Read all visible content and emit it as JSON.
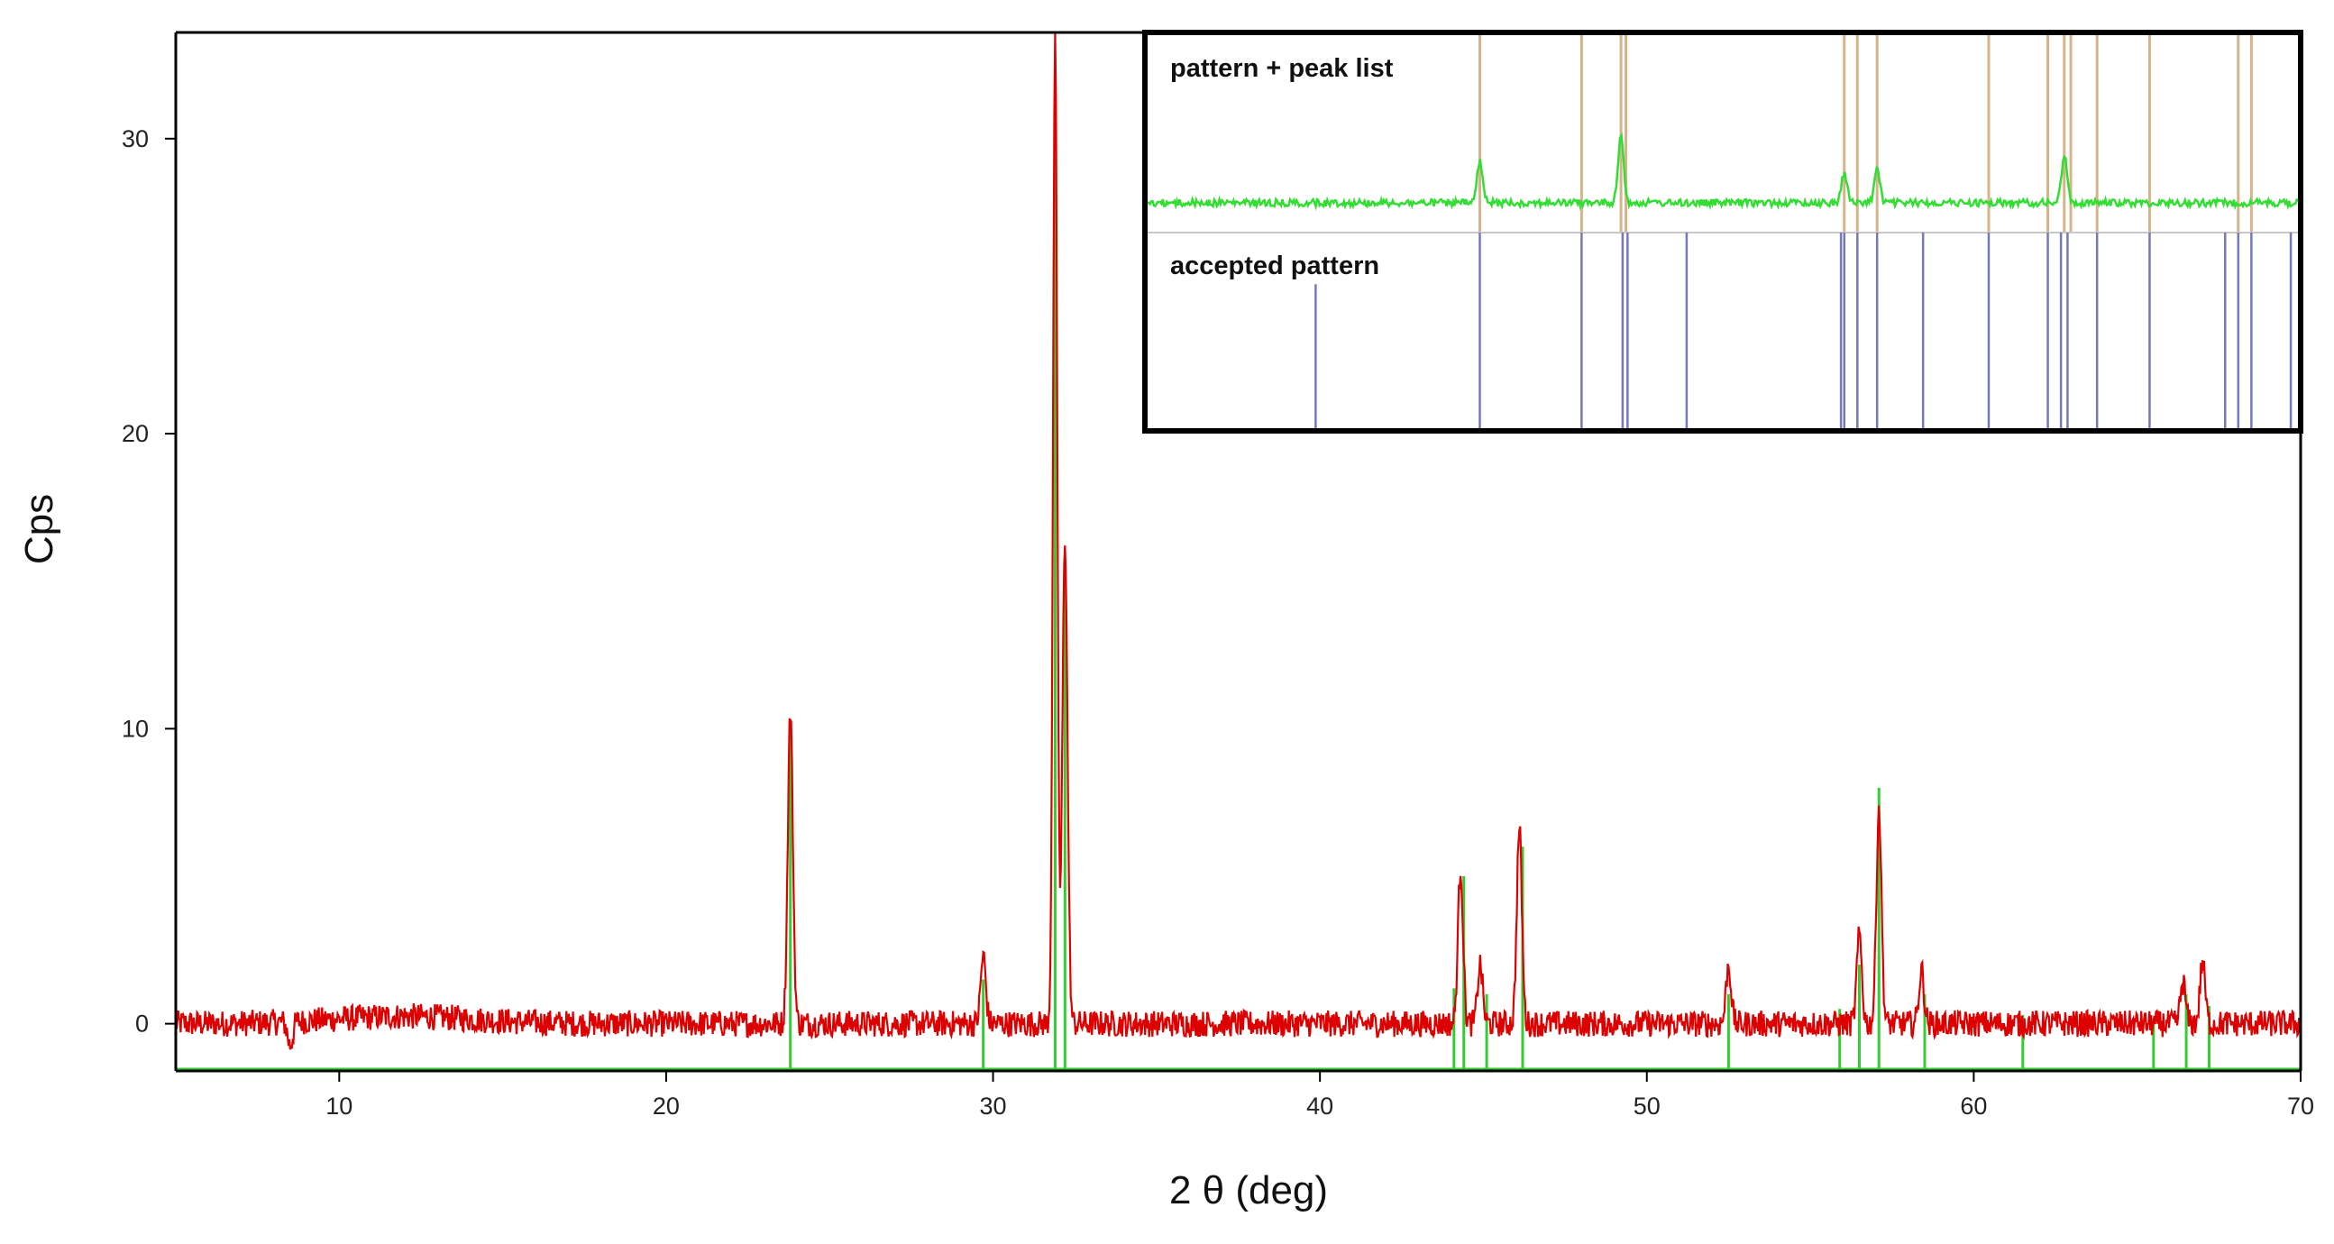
{
  "chart_data": {
    "type": "line",
    "title": "",
    "xlabel": "2 θ (deg)",
    "ylabel": "Cps",
    "xlim": [
      5,
      70
    ],
    "ylim": [
      -1.6,
      33.6
    ],
    "x_ticks": [
      10,
      20,
      30,
      40,
      50,
      60,
      70
    ],
    "y_ticks": [
      0,
      10,
      20,
      30
    ],
    "grid": false,
    "legend": "none",
    "series": [
      {
        "kind": "line",
        "color": "#dd0000",
        "baseline": 0,
        "noise_amplitude": 0.45,
        "peaks": [
          {
            "x": 8.5,
            "y": -0.8
          },
          {
            "x": 23.8,
            "y": 10.6
          },
          {
            "x": 29.7,
            "y": 2.3
          },
          {
            "x": 31.9,
            "y": 33.5
          },
          {
            "x": 32.2,
            "y": 16.5
          },
          {
            "x": 44.3,
            "y": 5.3
          },
          {
            "x": 44.9,
            "y": 2.0
          },
          {
            "x": 46.1,
            "y": 6.6
          },
          {
            "x": 52.5,
            "y": 2.0
          },
          {
            "x": 56.5,
            "y": 3.0
          },
          {
            "x": 57.1,
            "y": 7.3
          },
          {
            "x": 58.4,
            "y": 1.8
          },
          {
            "x": 66.4,
            "y": 1.4
          },
          {
            "x": 67.0,
            "y": 2.1
          }
        ]
      },
      {
        "kind": "stick",
        "color": "#33cc33",
        "sticks": [
          {
            "x": 23.8,
            "y": 10.0
          },
          {
            "x": 29.7,
            "y": 1.5
          },
          {
            "x": 31.9,
            "y": 31.0
          },
          {
            "x": 32.2,
            "y": 15.0
          },
          {
            "x": 44.1,
            "y": 1.2
          },
          {
            "x": 44.4,
            "y": 5.0
          },
          {
            "x": 45.1,
            "y": 1.0
          },
          {
            "x": 46.2,
            "y": 6.0
          },
          {
            "x": 52.5,
            "y": 1.0
          },
          {
            "x": 55.9,
            "y": 0.5
          },
          {
            "x": 56.5,
            "y": 2.0
          },
          {
            "x": 57.1,
            "y": 8.0
          },
          {
            "x": 58.5,
            "y": 1.0
          },
          {
            "x": 61.5,
            "y": 0.3
          },
          {
            "x": 65.5,
            "y": 0.2
          },
          {
            "x": 66.5,
            "y": 1.0
          },
          {
            "x": 67.2,
            "y": 0.6
          }
        ]
      }
    ],
    "inset": {
      "panel_top_label": "pattern + peak list",
      "panel_bottom_label": "accepted pattern",
      "xlim": [
        34.8,
        70
      ],
      "pattern_color": "#33dd33",
      "peak_line_color": "#d6b48a",
      "reference_line_color": "#7777bb",
      "pattern_peaks": [
        {
          "x": 45.0,
          "h": 0.6
        },
        {
          "x": 49.3,
          "h": 1.0
        },
        {
          "x": 56.1,
          "h": 0.45
        },
        {
          "x": 57.1,
          "h": 0.5
        },
        {
          "x": 62.8,
          "h": 0.7
        }
      ],
      "peak_list": [
        45.0,
        48.1,
        49.3,
        49.45,
        56.1,
        56.5,
        57.1,
        60.5,
        62.3,
        62.8,
        63.0,
        63.8,
        65.4,
        68.1,
        68.5
      ],
      "reference_lines": [
        {
          "x": 40.0,
          "h": 0.74
        },
        {
          "x": 45.0,
          "h": 1.0
        },
        {
          "x": 48.1,
          "h": 1.0
        },
        {
          "x": 49.35,
          "h": 1.0
        },
        {
          "x": 49.5,
          "h": 1.0
        },
        {
          "x": 51.3,
          "h": 1.0
        },
        {
          "x": 56.0,
          "h": 1.0
        },
        {
          "x": 56.1,
          "h": 1.0
        },
        {
          "x": 56.5,
          "h": 1.0
        },
        {
          "x": 57.1,
          "h": 1.0
        },
        {
          "x": 58.5,
          "h": 1.0
        },
        {
          "x": 60.5,
          "h": 1.0
        },
        {
          "x": 62.3,
          "h": 1.0
        },
        {
          "x": 62.7,
          "h": 1.0
        },
        {
          "x": 62.9,
          "h": 1.0
        },
        {
          "x": 63.8,
          "h": 1.0
        },
        {
          "x": 65.4,
          "h": 1.0
        },
        {
          "x": 67.7,
          "h": 1.0
        },
        {
          "x": 68.1,
          "h": 1.0
        },
        {
          "x": 68.5,
          "h": 1.0
        },
        {
          "x": 69.7,
          "h": 1.0
        }
      ]
    }
  }
}
